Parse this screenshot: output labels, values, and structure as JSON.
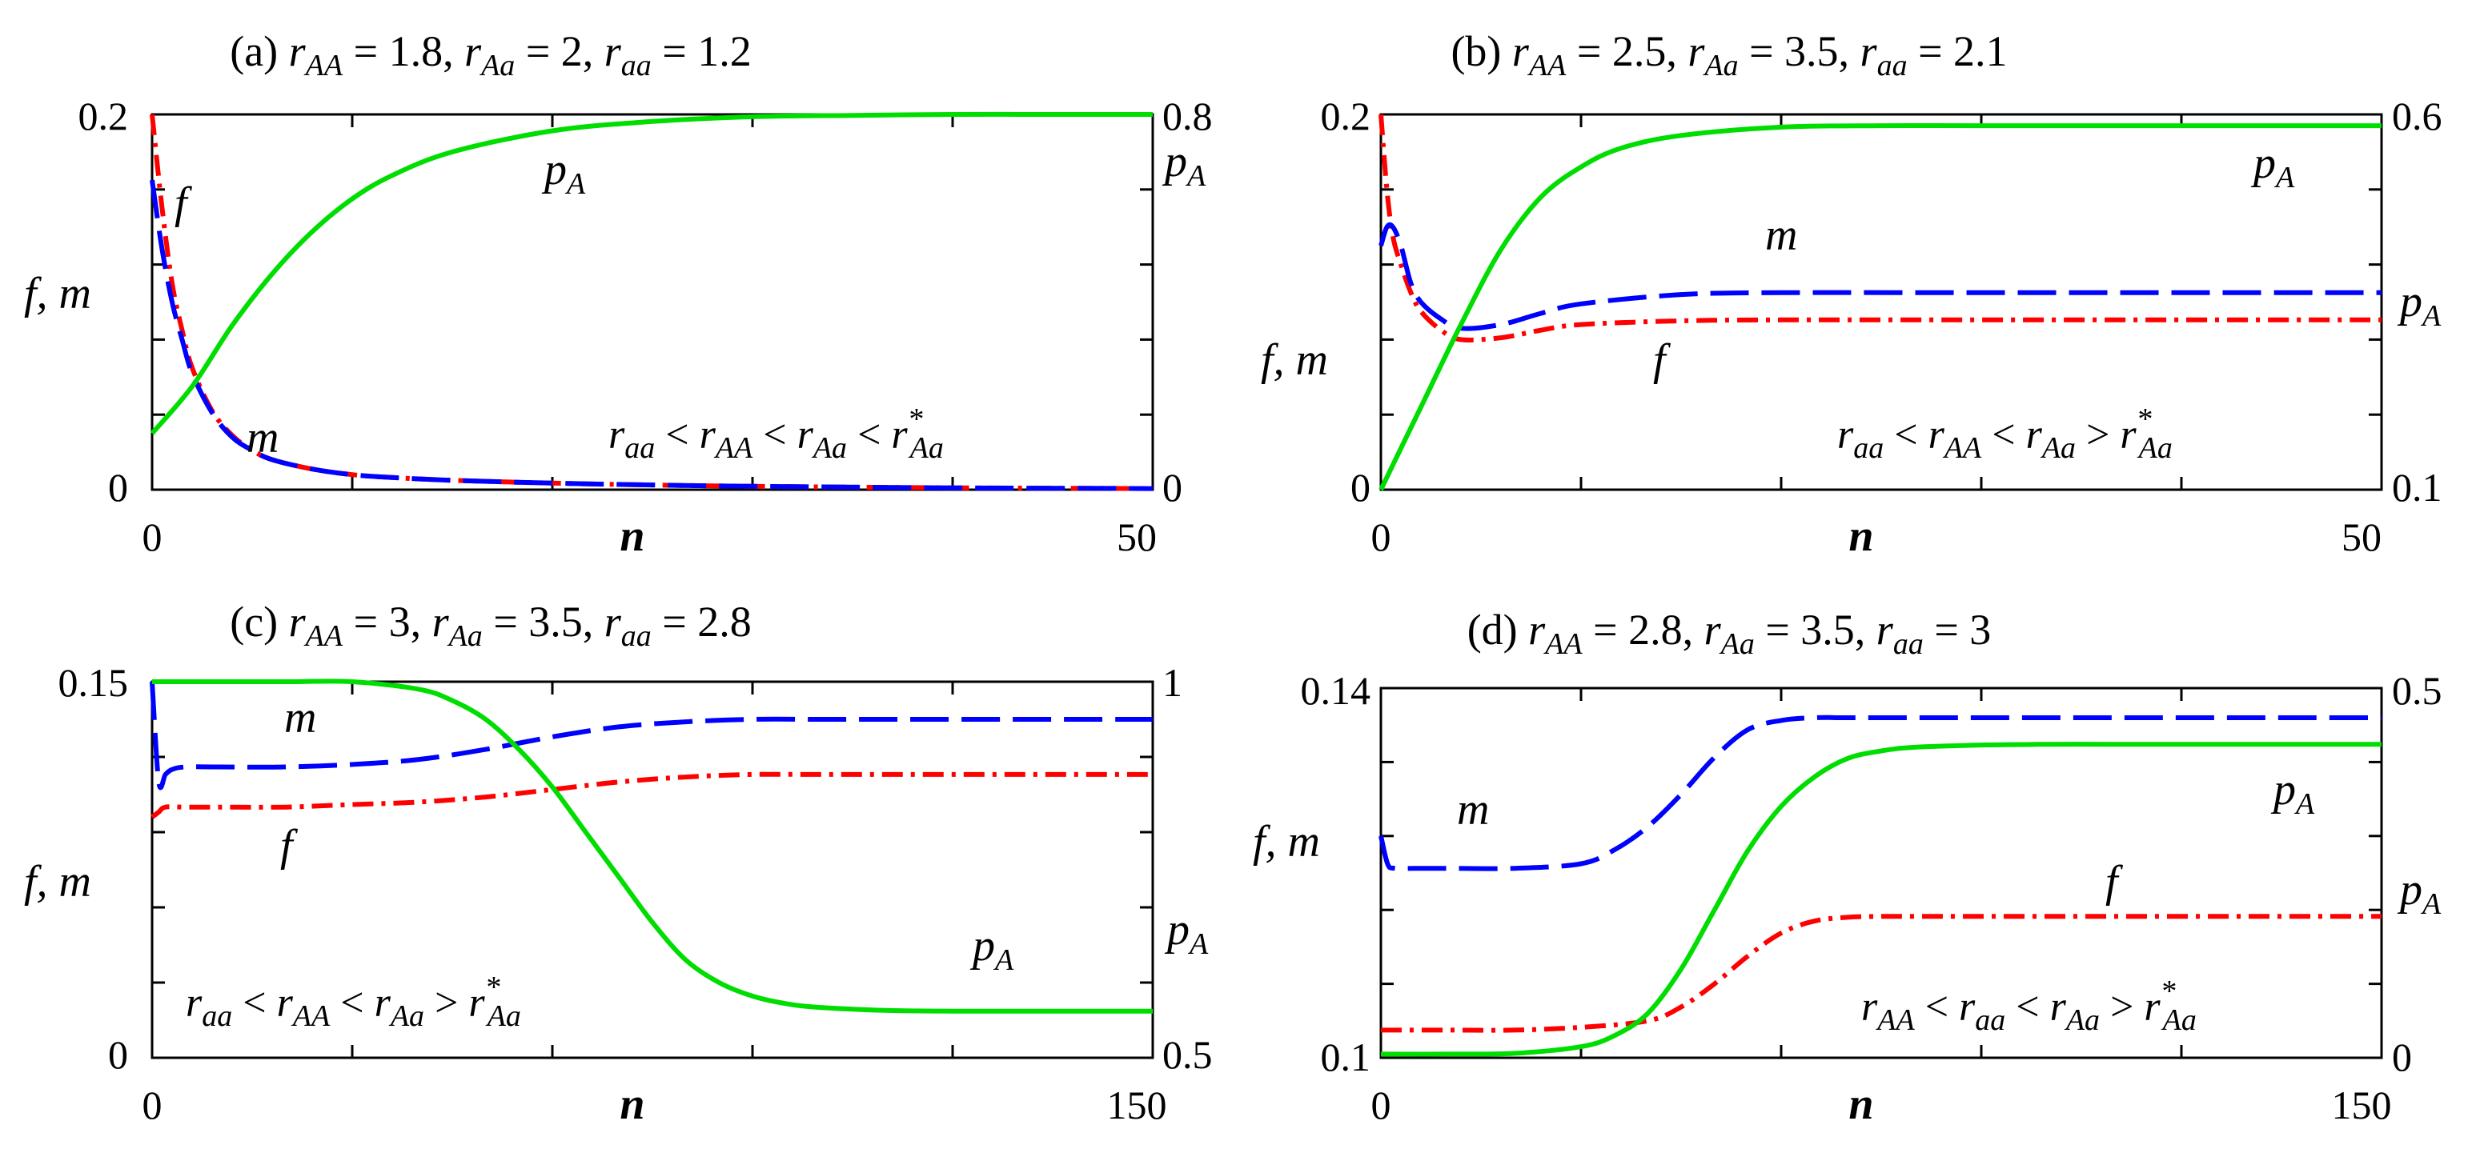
{
  "chart_data": [
    {
      "type": "line",
      "panel": "a",
      "title": "(a) r_AA = 1.8, r_Aa = 2, r_aa = 1.2",
      "xlabel": "n",
      "ylabel": "f, m",
      "y2label": "p_A",
      "xlim": [
        0,
        50
      ],
      "ylim": [
        0,
        0.2
      ],
      "y2lim": [
        0,
        0.8
      ],
      "x_ticks": [
        "0",
        "50"
      ],
      "y_ticks": [
        "0",
        "0.2"
      ],
      "y2_ticks": [
        "0",
        "0.8"
      ],
      "condition": "r_aa < r_AA < r_Aa < r*_Aa",
      "series": [
        {
          "name": "f",
          "axis": "left",
          "style": "dash-dot",
          "color": "#ff0000",
          "x": [
            0,
            0.5,
            1,
            1.5,
            2,
            3,
            4,
            5,
            6,
            8,
            10,
            12,
            15,
            20,
            25,
            30,
            40,
            50
          ],
          "y": [
            0.2,
            0.15,
            0.11,
            0.085,
            0.065,
            0.042,
            0.029,
            0.021,
            0.016,
            0.011,
            0.008,
            0.0065,
            0.005,
            0.0035,
            0.0025,
            0.0018,
            0.001,
            0.0006
          ]
        },
        {
          "name": "m",
          "axis": "left",
          "style": "dashed",
          "color": "#0000ff",
          "x": [
            0,
            0.5,
            1,
            1.5,
            2,
            3,
            4,
            5,
            6,
            8,
            10,
            12,
            15,
            20,
            25,
            30,
            40,
            50
          ],
          "y": [
            0.165,
            0.128,
            0.1,
            0.08,
            0.062,
            0.041,
            0.028,
            0.021,
            0.016,
            0.011,
            0.008,
            0.0065,
            0.005,
            0.0035,
            0.0025,
            0.0018,
            0.001,
            0.0006
          ]
        },
        {
          "name": "p_A",
          "axis": "right",
          "style": "solid",
          "color": "#00dd00",
          "x": [
            0,
            2,
            4,
            6,
            8,
            10,
            12,
            15,
            20,
            25,
            30,
            35,
            40,
            45,
            50
          ],
          "y": [
            0.12,
            0.22,
            0.35,
            0.46,
            0.55,
            0.62,
            0.67,
            0.72,
            0.765,
            0.785,
            0.795,
            0.798,
            0.8,
            0.8,
            0.8
          ]
        }
      ],
      "labels": {
        "f": "f",
        "m": "m",
        "pA_curve": "p",
        "pA_axis": "p",
        "pA_sub": "A",
        "fm_axis": "f, m",
        "n": "n"
      }
    },
    {
      "type": "line",
      "panel": "b",
      "title": "(b) r_AA = 2.5, r_Aa = 3.5, r_aa = 2.1",
      "xlabel": "n",
      "ylabel": "f, m",
      "y2label": "p_A",
      "xlim": [
        0,
        50
      ],
      "ylim": [
        0,
        0.2
      ],
      "y2lim": [
        0.1,
        0.6
      ],
      "x_ticks": [
        "0",
        "50"
      ],
      "y_ticks": [
        "0",
        "0.2"
      ],
      "y2_ticks": [
        "0.1",
        "0.6"
      ],
      "condition": "r_aa < r_AA < r_Aa > r*_Aa",
      "series": [
        {
          "name": "f",
          "axis": "left",
          "style": "dash-dot",
          "color": "#ff0000",
          "x": [
            0,
            0.3,
            0.6,
            1,
            1.5,
            2,
            3,
            4,
            6,
            8,
            10,
            15,
            20,
            30,
            40,
            50
          ],
          "y": [
            0.2,
            0.16,
            0.135,
            0.12,
            0.105,
            0.095,
            0.085,
            0.08,
            0.081,
            0.085,
            0.088,
            0.09,
            0.0905,
            0.0905,
            0.0905,
            0.0905
          ]
        },
        {
          "name": "m",
          "axis": "left",
          "style": "dashed",
          "color": "#0000ff",
          "x": [
            0,
            0.3,
            0.6,
            1,
            1.5,
            2,
            3,
            4,
            6,
            8,
            10,
            15,
            20,
            30,
            40,
            50
          ],
          "y": [
            0.13,
            0.14,
            0.14,
            0.13,
            0.11,
            0.1,
            0.091,
            0.086,
            0.088,
            0.094,
            0.099,
            0.104,
            0.105,
            0.105,
            0.105,
            0.105
          ]
        },
        {
          "name": "p_A",
          "axis": "right",
          "style": "solid",
          "color": "#00dd00",
          "x": [
            0,
            2,
            4,
            6,
            8,
            10,
            12,
            15,
            20,
            25,
            30,
            40,
            50
          ],
          "y": [
            0.1,
            0.21,
            0.32,
            0.42,
            0.49,
            0.53,
            0.555,
            0.572,
            0.583,
            0.585,
            0.585,
            0.585,
            0.585
          ]
        }
      ],
      "labels": {
        "f": "f",
        "m": "m",
        "pA_curve": "p",
        "pA_axis": "p",
        "pA_sub": "A",
        "fm_axis": "f, m",
        "n": "n"
      }
    },
    {
      "type": "line",
      "panel": "c",
      "title": "(c) r_AA = 3, r_Aa = 3.5, r_aa = 2.8",
      "xlabel": "n",
      "ylabel": "f, m",
      "y2label": "p_A",
      "xlim": [
        0,
        150
      ],
      "ylim": [
        0,
        0.15
      ],
      "y2lim": [
        0.5,
        1
      ],
      "x_ticks": [
        "0",
        "150"
      ],
      "y_ticks": [
        "0",
        "0.15"
      ],
      "y2_ticks": [
        "0.5",
        "1"
      ],
      "condition": "r_aa < r_AA < r_Aa > r*_Aa",
      "series": [
        {
          "name": "f",
          "axis": "left",
          "style": "dash-dot",
          "color": "#ff0000",
          "x": [
            0,
            1,
            2,
            5,
            10,
            20,
            30,
            40,
            50,
            60,
            70,
            80,
            90,
            100,
            110,
            120,
            130,
            140,
            150
          ],
          "y": [
            0.096,
            0.098,
            0.1,
            0.1,
            0.1,
            0.1,
            0.101,
            0.102,
            0.104,
            0.107,
            0.11,
            0.112,
            0.113,
            0.113,
            0.113,
            0.113,
            0.113,
            0.113,
            0.113
          ]
        },
        {
          "name": "m",
          "axis": "left",
          "style": "dashed",
          "color": "#0000ff",
          "x": [
            0,
            1,
            2,
            3,
            5,
            10,
            20,
            30,
            40,
            50,
            60,
            70,
            80,
            90,
            100,
            110,
            120,
            130,
            140,
            150
          ],
          "y": [
            0.15,
            0.11,
            0.113,
            0.115,
            0.116,
            0.116,
            0.116,
            0.117,
            0.119,
            0.123,
            0.128,
            0.132,
            0.134,
            0.135,
            0.135,
            0.135,
            0.135,
            0.135,
            0.135,
            0.135
          ]
        },
        {
          "name": "p_A",
          "axis": "right",
          "style": "solid",
          "color": "#00dd00",
          "x": [
            0,
            10,
            20,
            30,
            40,
            45,
            50,
            55,
            60,
            65,
            70,
            75,
            80,
            85,
            90,
            95,
            100,
            110,
            120,
            130,
            140,
            150
          ],
          "y": [
            1,
            1,
            1,
            1,
            0.99,
            0.975,
            0.95,
            0.91,
            0.86,
            0.8,
            0.74,
            0.68,
            0.63,
            0.6,
            0.582,
            0.572,
            0.567,
            0.563,
            0.562,
            0.562,
            0.562,
            0.562
          ]
        }
      ],
      "labels": {
        "f": "f",
        "m": "m",
        "pA_curve": "p",
        "pA_axis": "p",
        "pA_sub": "A",
        "fm_axis": "f, m",
        "n": "n"
      }
    },
    {
      "type": "line",
      "panel": "d",
      "title": "(d) r_AA = 2.8, r_Aa = 3.5, r_aa = 3",
      "xlabel": "n",
      "ylabel": "f, m",
      "y2label": "p_A",
      "xlim": [
        0,
        150
      ],
      "ylim": [
        0.1,
        0.14
      ],
      "y2lim": [
        0,
        0.5
      ],
      "x_ticks": [
        "0",
        "150"
      ],
      "y_ticks": [
        "0.1",
        "0.14"
      ],
      "y2_ticks": [
        "0",
        "0.5"
      ],
      "condition": "r_AA < r_aa < r_Aa > r*_Aa",
      "series": [
        {
          "name": "f",
          "axis": "left",
          "style": "dash-dot",
          "color": "#ff0000",
          "x": [
            0,
            10,
            20,
            30,
            40,
            45,
            50,
            55,
            60,
            65,
            70,
            75,
            80,
            90,
            100,
            110,
            120,
            130,
            140,
            150
          ],
          "y": [
            0.103,
            0.103,
            0.103,
            0.1033,
            0.104,
            0.1055,
            0.108,
            0.111,
            0.1135,
            0.1148,
            0.1152,
            0.1153,
            0.1153,
            0.1153,
            0.1153,
            0.1153,
            0.1153,
            0.1153,
            0.1153,
            0.1153
          ]
        },
        {
          "name": "m",
          "axis": "left",
          "style": "dashed",
          "color": "#0000ff",
          "x": [
            0,
            1,
            2,
            5,
            10,
            20,
            30,
            35,
            40,
            45,
            50,
            55,
            60,
            65,
            70,
            80,
            90,
            100,
            110,
            120,
            130,
            140,
            150
          ],
          "y": [
            0.124,
            0.121,
            0.1205,
            0.1205,
            0.1205,
            0.1205,
            0.121,
            0.1225,
            0.125,
            0.1285,
            0.1325,
            0.1355,
            0.1365,
            0.1368,
            0.1368,
            0.1368,
            0.1368,
            0.1368,
            0.1368,
            0.1368,
            0.1368,
            0.1368,
            0.1368
          ]
        },
        {
          "name": "p_A",
          "axis": "right",
          "style": "solid",
          "color": "#00dd00",
          "x": [
            0,
            10,
            20,
            30,
            35,
            40,
            45,
            50,
            55,
            60,
            65,
            70,
            75,
            80,
            90,
            100,
            110,
            120,
            130,
            140,
            150
          ],
          "y": [
            0.005,
            0.005,
            0.006,
            0.015,
            0.03,
            0.06,
            0.12,
            0.2,
            0.28,
            0.34,
            0.38,
            0.405,
            0.415,
            0.42,
            0.423,
            0.424,
            0.424,
            0.424,
            0.424,
            0.424,
            0.424
          ]
        }
      ],
      "labels": {
        "f": "f",
        "m": "m",
        "pA_curve": "p",
        "pA_axis": "p",
        "pA_sub": "A",
        "fm_axis": "f, m",
        "n": "n"
      }
    }
  ]
}
